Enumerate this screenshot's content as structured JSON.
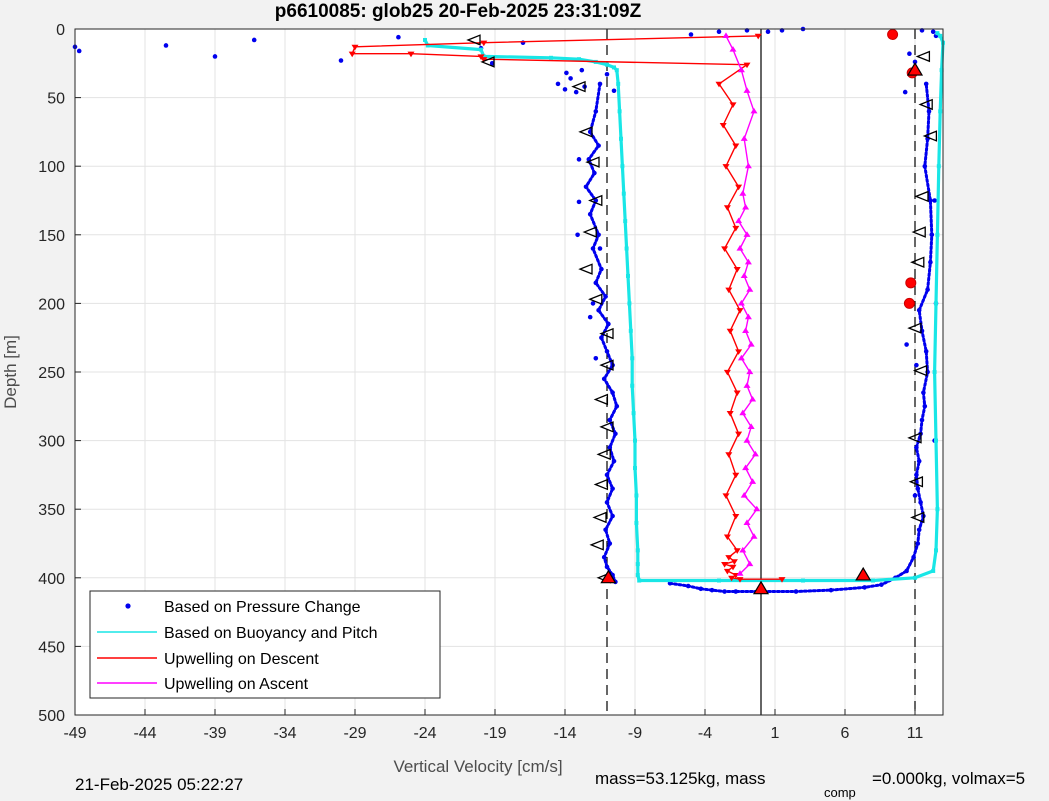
{
  "chart_data": {
    "type": "scatter",
    "title": "p6610085: glob25 20-Feb-2025 23:31:09Z",
    "xlabel": "Vertical Velocity [cm/s]",
    "ylabel": "Depth [m]",
    "xlim": [
      -49,
      13
    ],
    "ylim": [
      0,
      500
    ],
    "y_reversed": true,
    "grid": true,
    "xticks": [
      -49,
      -44,
      -39,
      -34,
      -29,
      -24,
      -19,
      -14,
      -9,
      -4,
      1,
      6,
      11
    ],
    "yticks": [
      0,
      50,
      100,
      150,
      200,
      250,
      300,
      350,
      400,
      450,
      500
    ],
    "xtick_labels": [
      "-49",
      "-44",
      "-39",
      "-34",
      "-29",
      "-24",
      "-19",
      "-14",
      "-9",
      "-4",
      "1",
      "6",
      "11"
    ],
    "ytick_labels": [
      "0",
      "50",
      "100",
      "150",
      "200",
      "250",
      "300",
      "350",
      "400",
      "450",
      "500"
    ],
    "reference_lines": {
      "dashed_x": [
        -11,
        11
      ],
      "solid_x": [
        0
      ]
    },
    "legend": {
      "placement": "bottom-left",
      "entries": [
        "Based on Pressure Change",
        "Based on Buoyancy and Pitch",
        "Upwelling on Descent",
        "Upwelling on Ascent"
      ]
    },
    "series": [
      {
        "name": "Based on Pressure Change",
        "style": "dots",
        "color": "#0000ee",
        "segments": [
          {
            "x": [
              -11.5,
              -11.8,
              -12.2,
              -11.6,
              -12.3,
              -11.9,
              -12.5,
              -11.8,
              -12.2,
              -11.6,
              -12.0,
              -11.4,
              -11.8,
              -11.1,
              -11.6,
              -10.9,
              -11.4,
              -11.0,
              -10.6,
              -11.2,
              -10.6,
              -10.3,
              -10.8,
              -10.4,
              -10.8,
              -10.5,
              -11.0,
              -10.6,
              -11.0,
              -10.6,
              -11.1,
              -10.8,
              -11.2,
              -11.0,
              -10.6,
              -10.4
            ],
            "y": [
              40,
              60,
              75,
              85,
              95,
              105,
              115,
              125,
              135,
              150,
              160,
              175,
              185,
              195,
              205,
              215,
              225,
              235,
              245,
              255,
              265,
              275,
              285,
              295,
              305,
              315,
              325,
              335,
              345,
              355,
              365,
              375,
              385,
              392,
              398,
              403
            ]
          },
          {
            "x": [
              -6.5,
              -5.2,
              -4.3,
              -3.5,
              -2.6,
              -1.8,
              0.2,
              2.5,
              5.0,
              7.4,
              8.6,
              9.6,
              10.4,
              10.9,
              11.2,
              11.3,
              11.6,
              11.4,
              11.2,
              11.1,
              11.3,
              11.1,
              11.4,
              11.5,
              11.7,
              11.6,
              11.9,
              11.8,
              11.5,
              11.3,
              11.9,
              12.1,
              12.2,
              12.1,
              11.7,
              11.9,
              12.0,
              11.8
            ],
            "y": [
              404,
              406,
              408,
              409,
              410,
              410,
              410,
              410,
              409,
              407,
              405,
              400,
              395,
              385,
              375,
              365,
              355,
              345,
              335,
              325,
              315,
              305,
              295,
              285,
              275,
              265,
              250,
              235,
              220,
              205,
              190,
              170,
              150,
              125,
              100,
              80,
              60,
              40
            ]
          }
        ],
        "scatter": {
          "x": [
            -49,
            -48.7,
            -42.5,
            -39,
            -36.2,
            -30,
            -25.9,
            -20,
            -19.2,
            -17,
            -14.5,
            -14,
            -13.6,
            -13.2,
            -12.8,
            -13.9,
            -12.6,
            -11,
            -10.5,
            -5,
            -3,
            -1,
            0.5,
            1.5,
            3,
            11.5,
            12.3,
            12.5,
            10.3,
            10.6,
            11,
            12.4,
            12.5,
            -13,
            -12,
            -11.5,
            -12.2,
            -13.1,
            -13.0,
            -11.8,
            10.4,
            11.1,
            12.4,
            11.0
          ],
          "y": [
            13,
            16,
            12,
            20,
            8,
            23,
            6,
            14,
            25,
            10,
            40,
            44,
            36,
            46,
            30,
            32,
            42,
            33,
            45,
            4,
            2,
            1,
            2,
            1,
            0,
            1,
            2,
            5,
            46,
            18,
            24,
            125,
            200,
            126,
            200,
            160,
            210,
            150,
            95,
            240,
            230,
            245,
            300,
            340
          ]
        }
      },
      {
        "name": "Based on Buoyancy and Pitch",
        "style": "line",
        "color": "#19e6e6",
        "x": [
          -24,
          -23.8,
          -20,
          -19.8,
          -15,
          -13,
          -11.8,
          -11,
          -10.5,
          -10.3,
          -10.2,
          -10.1,
          -10.0,
          -9.9,
          -9.8,
          -9.7,
          -9.6,
          -9.5,
          -9.4,
          -9.3,
          -9.2,
          -9.2,
          -9.1,
          -9.0,
          -9.0,
          -8.9,
          -8.9,
          -8.8,
          -8.8,
          -8.8,
          -8.7,
          -3.0,
          3.0,
          8.0,
          11.0,
          12.3,
          12.5,
          12.6,
          12.5,
          12.4,
          12.5,
          12.6,
          12.7,
          12.8,
          12.9,
          13.0,
          12.8,
          12.6
        ],
        "y": [
          8,
          12,
          15,
          20,
          21,
          22,
          24,
          26,
          28,
          30,
          40,
          60,
          80,
          100,
          120,
          140,
          160,
          180,
          200,
          220,
          240,
          260,
          280,
          300,
          320,
          340,
          360,
          380,
          390,
          398,
          402,
          402,
          402,
          402,
          400,
          395,
          380,
          350,
          300,
          250,
          200,
          150,
          100,
          60,
          30,
          10,
          5,
          3
        ]
      },
      {
        "name": "Upwelling on Descent",
        "style": "line-triangle-down",
        "color": "#ff0000",
        "x": [
          -0.2,
          -19.8,
          -29,
          -29.2,
          -25,
          -20,
          -19.8,
          -1.0,
          -3.0,
          -2.0,
          -2.7,
          -1.8,
          -2.5,
          -1.6,
          -2.4,
          -1.8,
          -2.6,
          -1.7,
          -2.3,
          -1.5,
          -2.2,
          -1.6,
          -2.4,
          -1.7,
          -2.2,
          -1.6,
          -2.3,
          -1.8,
          -2.5,
          -1.8,
          -2.4,
          -1.7,
          -2.3,
          -1.9,
          -2.6,
          -2.0,
          -2.4,
          -1.8,
          -2.1,
          -1.5,
          1.5
        ],
        "y": [
          5,
          10,
          13,
          18,
          18,
          20,
          22,
          26,
          40,
          55,
          70,
          85,
          100,
          115,
          130,
          145,
          160,
          175,
          190,
          205,
          220,
          235,
          250,
          265,
          280,
          295,
          310,
          325,
          340,
          355,
          370,
          380,
          385,
          388,
          390,
          392,
          395,
          398,
          400,
          401,
          401
        ]
      },
      {
        "name": "Upwelling on Ascent",
        "style": "line-triangle-up",
        "color": "#ff00ff",
        "x": [
          -1.5,
          -0.8,
          -1.3,
          -0.5,
          -1.0,
          -0.3,
          -1.2,
          -0.6,
          -1.1,
          -0.4,
          -1.0,
          -0.7,
          -1.3,
          -0.6,
          -1.0,
          -0.8,
          -1.4,
          -0.7,
          -1.1,
          -0.9,
          -1.4,
          -0.8,
          -1.2,
          -0.9,
          -1.5,
          -1.0,
          -1.6,
          -1.1,
          -1.3,
          -0.9,
          -1.2,
          -0.5,
          -1.0,
          -1.4,
          -2.0,
          -2.5
        ],
        "y": [
          397,
          390,
          380,
          370,
          360,
          350,
          340,
          330,
          320,
          310,
          300,
          290,
          280,
          270,
          260,
          250,
          240,
          230,
          220,
          210,
          200,
          190,
          180,
          170,
          160,
          150,
          140,
          130,
          120,
          100,
          80,
          60,
          45,
          30,
          15,
          5
        ]
      }
    ],
    "markers": {
      "open_triangles_left": [
        {
          "x": -20.5,
          "y": 8
        },
        {
          "x": -19.5,
          "y": 24
        },
        {
          "x": -13,
          "y": 42
        },
        {
          "x": -12.5,
          "y": 75
        },
        {
          "x": -12,
          "y": 97
        },
        {
          "x": -11.8,
          "y": 125
        },
        {
          "x": -12.2,
          "y": 148
        },
        {
          "x": -12.5,
          "y": 175
        },
        {
          "x": -11.8,
          "y": 197
        },
        {
          "x": -11,
          "y": 222
        },
        {
          "x": -11,
          "y": 245
        },
        {
          "x": -11.4,
          "y": 270
        },
        {
          "x": -11,
          "y": 290
        },
        {
          "x": -11.2,
          "y": 310
        },
        {
          "x": -11.4,
          "y": 332
        },
        {
          "x": -11.5,
          "y": 356
        },
        {
          "x": -11.7,
          "y": 376
        },
        {
          "x": -11.2,
          "y": 400
        },
        {
          "x": 11.6,
          "y": 20
        },
        {
          "x": 11.8,
          "y": 55
        },
        {
          "x": 12.1,
          "y": 78
        },
        {
          "x": 11.5,
          "y": 122
        },
        {
          "x": 11.3,
          "y": 148
        },
        {
          "x": 11.2,
          "y": 170
        },
        {
          "x": 11.0,
          "y": 218
        },
        {
          "x": 11.4,
          "y": 249
        },
        {
          "x": 11.0,
          "y": 298
        },
        {
          "x": 11.1,
          "y": 330
        },
        {
          "x": 11.2,
          "y": 356
        }
      ],
      "filled_red_dots": [
        {
          "x": 9.4,
          "y": 4
        },
        {
          "x": 10.8,
          "y": 32
        },
        {
          "x": 10.7,
          "y": 185
        },
        {
          "x": 10.6,
          "y": 200
        }
      ],
      "filled_red_triangles": [
        {
          "x": -10.9,
          "y": 400
        },
        {
          "x": 0.0,
          "y": 408
        },
        {
          "x": 7.3,
          "y": 398
        },
        {
          "x": 11.0,
          "y": 30
        }
      ]
    }
  },
  "footer": {
    "date": "21-Feb-2025 05:22:27",
    "mass_text": "mass=53.125kg, mass",
    "comp_subscript": "comp",
    "comp_text": "=0.000kg, volmax=5"
  }
}
